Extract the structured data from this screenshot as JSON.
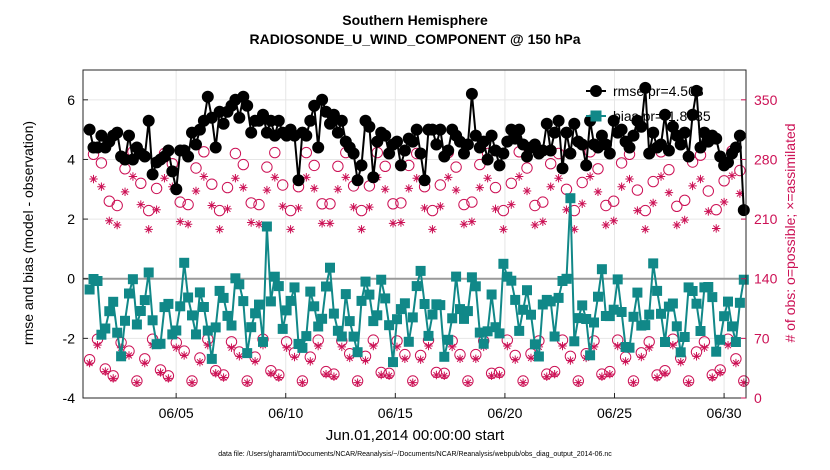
{
  "chart_data": {
    "type": "line",
    "title": "Southern Hemisphere",
    "subtitle": "RADIOSONDE_U_WIND_COMPONENT @ 150 hPa",
    "xlabel": "Jun.01,2014 00:00:00 start",
    "ylabel": "rmse and bias (model - observation)",
    "y2label": "# of obs: o=possible; ×=assimilated",
    "footer": "data file: /Users/gharamti/Documents/NCAR/Reanalysis/~/Documents/NCAR/Reanalysis/webpub/obs_diag_output_2014-06.nc",
    "x_ticks": [
      "06/05",
      "06/10",
      "06/15",
      "06/20",
      "06/25",
      "06/30"
    ],
    "x_tick_days": [
      5,
      10,
      15,
      20,
      25,
      30
    ],
    "xlim": [
      0.75,
      31.0
    ],
    "ylim": [
      -4,
      7
    ],
    "y_ticks": [
      "-4",
      "-2",
      "0",
      "2",
      "4",
      "6"
    ],
    "y2lim": [
      0,
      385
    ],
    "y2_ticks": [
      "0",
      "70",
      "140",
      "210",
      "280",
      "350"
    ],
    "legend": {
      "position": "top-right",
      "entries": [
        "rmse pr=4.503",
        "bias pr=-1.8035"
      ]
    },
    "colors": {
      "rmse": "#000000",
      "bias": "#118888",
      "obs": "#cc1155",
      "zero_line": "#999999",
      "grid": "#e6e6e6"
    },
    "series": [
      {
        "name": "rmse pr=4.503",
        "values": [
          5.0,
          4.4,
          4.4,
          4.8,
          4.4,
          4.6,
          4.8,
          4.9,
          4.1,
          4.0,
          4.8,
          4.0,
          4.4,
          4.2,
          4.1,
          5.3,
          3.5,
          3.9,
          4.0,
          4.1,
          4.3,
          3.6,
          3.0,
          4.3,
          4.3,
          4.1,
          4.9,
          4.5,
          5.0,
          5.3,
          6.1,
          5.4,
          4.4,
          5.6,
          5.2,
          5.6,
          5.8,
          6.0,
          5.4,
          6.1,
          5.8,
          4.9,
          5.3,
          5.3,
          5.5,
          4.9,
          5.3,
          4.8,
          5.3,
          4.9,
          4.8,
          5.0,
          4.8,
          3.3,
          4.9,
          4.8,
          5.3,
          5.8,
          4.4,
          6.0,
          5.6,
          5.2,
          5.5,
          4.9,
          5.3,
          4.6,
          4.4,
          4.2,
          3.3,
          3.8,
          5.3,
          5.1,
          3.4,
          4.6,
          4.9,
          4.8,
          4.2,
          4.5,
          4.6,
          3.8,
          4.3,
          4.7,
          4.6,
          5.0,
          4.2,
          3.3,
          5.0,
          5.0,
          4.5,
          5.0,
          4.1,
          4.3,
          5.0,
          4.8,
          4.6,
          4.2,
          4.5,
          6.2,
          4.8,
          4.4,
          4.6,
          4.0,
          4.8,
          4.3,
          3.8,
          4.2,
          4.6,
          5.0,
          4.7,
          5.0,
          4.5,
          4.1,
          4.4,
          4.5,
          4.2,
          4.3,
          5.2,
          4.3,
          4.9,
          5.3,
          3.7,
          4.9,
          4.2,
          5.2,
          4.6,
          4.5,
          3.8,
          5.3,
          4.5,
          4.4,
          4.8,
          4.5,
          4.2,
          5.3,
          4.9,
          5.0,
          4.6,
          4.4,
          4.8,
          5.3,
          5.1,
          6.4,
          4.2,
          4.9,
          4.4,
          4.5,
          5.5,
          4.3,
          5.1,
          4.8,
          4.5,
          4.9,
          4.1,
          5.5,
          6.3,
          4.4,
          4.9,
          4.6,
          4.8,
          4.7,
          4.1,
          3.8,
          3.9,
          4.2,
          4.4,
          4.8,
          2.3
        ],
        "source": "reconstructed"
      }
    ]
  }
}
